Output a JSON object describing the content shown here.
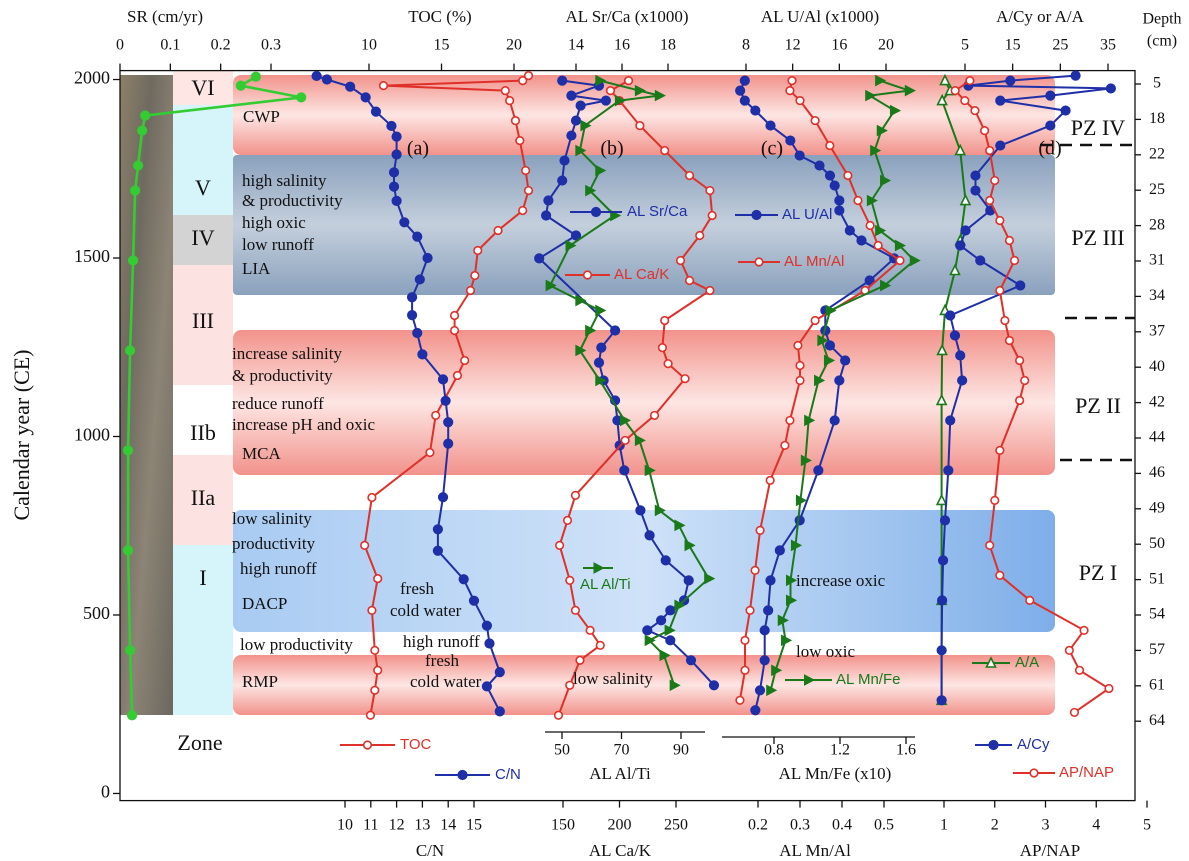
{
  "chart_data": {
    "type": "line",
    "y_label": "Calendar year (CE)",
    "ylim": [
      -20,
      2025
    ],
    "yticks": [
      0,
      500,
      1000,
      1500,
      2000
    ],
    "depth_label": [
      "Depth",
      "(cm)"
    ],
    "depth_ticks": [
      5,
      18,
      22,
      25,
      28,
      31,
      34,
      37,
      40,
      42,
      44,
      46,
      49,
      50,
      51,
      54,
      57,
      61,
      64
    ],
    "axes": [
      {
        "label": "SR (cm/yr)",
        "side": "top",
        "lim": [
          0,
          0.3
        ],
        "ticks": [
          0,
          0.1,
          0.2,
          0.3
        ]
      },
      {
        "label": "TOC (%)",
        "side": "top",
        "lim": [
          10,
          20
        ],
        "ticks": [
          10,
          15,
          20
        ]
      },
      {
        "label": "C/N",
        "side": "bottom",
        "lim": [
          10,
          15
        ],
        "ticks": [
          10,
          11,
          12,
          13,
          14,
          15
        ]
      },
      {
        "label": "AL Sr/Ca (x1000)",
        "side": "top",
        "lim": [
          14,
          18
        ],
        "ticks": [
          14,
          16,
          18
        ]
      },
      {
        "label": "AL Al/Ti",
        "side": "bottom-inner",
        "lim": [
          50,
          90
        ],
        "ticks": [
          50,
          70,
          90
        ]
      },
      {
        "label": "AL Ca/K",
        "side": "bottom",
        "lim": [
          150,
          250
        ],
        "ticks": [
          150,
          200,
          250
        ]
      },
      {
        "label": "AL U/Al (x1000)",
        "side": "top",
        "lim": [
          8,
          20
        ],
        "ticks": [
          8,
          12,
          16,
          20
        ]
      },
      {
        "label": "AL Mn/Fe (x10)",
        "side": "bottom-inner",
        "lim": [
          0.8,
          1.6
        ],
        "ticks": [
          0.8,
          1.2,
          1.6
        ]
      },
      {
        "label": "AL Mn/Al",
        "side": "bottom",
        "lim": [
          0.2,
          0.5
        ],
        "ticks": [
          0.2,
          0.3,
          0.4,
          0.5
        ]
      },
      {
        "label": "A/Cy or A/A",
        "side": "top",
        "lim": [
          5,
          35
        ],
        "ticks": [
          5,
          15,
          25,
          35
        ]
      },
      {
        "label": "AP/NAP",
        "side": "bottom",
        "lim": [
          1,
          5
        ],
        "ticks": [
          1,
          2,
          3,
          4,
          5
        ]
      }
    ],
    "series": [
      {
        "color": "#33cc33",
        "marker": "circle-filled",
        "axis": 0,
        "years": [
          2008,
          1983,
          1950,
          1899,
          1857,
          1759,
          1689,
          1493,
          1241,
          961,
          681,
          401,
          219
        ],
        "values": [
          0.27,
          0.24,
          0.36,
          0.05,
          0.044,
          0.036,
          0.03,
          0.026,
          0.02,
          0.016,
          0.016,
          0.02,
          0.024
        ]
      },
      {
        "name": "TOC",
        "color": "#e0302a",
        "marker": "circle-open",
        "axis": 1,
        "years": [
          2011,
          1997,
          1983,
          1969,
          1941,
          1885,
          1829,
          1745,
          1689,
          1633,
          1577,
          1521,
          1451,
          1409,
          1339,
          1297,
          1213,
          1171,
          1059,
          955,
          829,
          695,
          602,
          513,
          401,
          345,
          289,
          219
        ],
        "values": [
          21.0,
          20.6,
          11.0,
          19.4,
          19.7,
          20.1,
          20.4,
          20.8,
          21.0,
          20.6,
          18.9,
          17.5,
          17.3,
          17.0,
          15.9,
          15.9,
          16.6,
          16.1,
          14.6,
          14.2,
          10.2,
          9.7,
          10.6,
          10.2,
          10.4,
          10.6,
          10.4,
          10.1
        ]
      },
      {
        "name": "C/N",
        "color": "#1f2fa8",
        "marker": "circle-filled",
        "axis": 2,
        "years": [
          2010,
          2000,
          1980,
          1950,
          1910,
          1870,
          1840,
          1790,
          1740,
          1700,
          1660,
          1600,
          1560,
          1500,
          1440,
          1390,
          1340,
          1290,
          1230,
          1160,
          1100,
          1040,
          980,
          830,
          740,
          680,
          600,
          540,
          470,
          420,
          340,
          300,
          230
        ],
        "values": [
          8.9,
          9.3,
          10.2,
          10.8,
          11.2,
          11.8,
          12.0,
          12.0,
          11.9,
          11.9,
          12.0,
          12.3,
          12.8,
          13.2,
          12.9,
          12.6,
          12.6,
          12.8,
          13.0,
          13.8,
          13.9,
          14.0,
          14.0,
          13.8,
          13.6,
          13.6,
          14.6,
          15.0,
          15.5,
          15.6,
          16.0,
          15.5,
          16.0
        ]
      },
      {
        "name": "AL Sr/Ca",
        "color": "#1f2fa8",
        "marker": "circle-filled",
        "axis": 3,
        "years": [
          1997,
          1983,
          1955,
          1941,
          1927,
          1885,
          1843,
          1773,
          1717,
          1661,
          1619,
          1563,
          1499,
          1297,
          1249,
          1207,
          1157,
          1101,
          1045,
          975,
          905,
          793,
          723,
          653,
          597,
          541,
          513,
          485,
          457,
          429,
          373,
          303
        ],
        "values": [
          13.4,
          15.0,
          13.8,
          15.3,
          14.2,
          14.0,
          13.8,
          13.5,
          13.4,
          12.8,
          12.7,
          14.0,
          12.4,
          15.7,
          15.1,
          15.0,
          15.2,
          15.7,
          15.8,
          15.9,
          16.1,
          16.8,
          17.2,
          17.9,
          18.9,
          18.7,
          18.1,
          17.7,
          17.1,
          18.1,
          19.0,
          20.0
        ]
      },
      {
        "name": "AL Ca/K",
        "color": "#e0302a",
        "marker": "circle-open",
        "axis": 5,
        "years": [
          1997,
          1969,
          1941,
          1871,
          1801,
          1731,
          1689,
          1619,
          1563,
          1493,
          1437,
          1409,
          1325,
          1249,
          1204,
          1162,
          1059,
          989,
          835,
          765,
          695,
          597,
          513,
          457,
          415,
          373,
          303,
          219
        ],
        "values": [
          208,
          192,
          200,
          218,
          240,
          262,
          280,
          282,
          271,
          254,
          262,
          280,
          240,
          238,
          243,
          258,
          231,
          205,
          161,
          154,
          147,
          156,
          161,
          174,
          183,
          165,
          156,
          146
        ]
      },
      {
        "name": "AL Al/Ti",
        "color": "#1a7a1a",
        "marker": "triangle-filled",
        "axis": 4,
        "years": [
          1997,
          1969,
          1955,
          1941,
          1871,
          1801,
          1745,
          1689,
          1619,
          1535,
          1423,
          1381,
          1353,
          1297,
          1241,
          1157,
          1045,
          989,
          905,
          793,
          751,
          695,
          602,
          527,
          457,
          429,
          387,
          303
        ],
        "values": [
          62.7,
          76.0,
          82.7,
          69.3,
          57.7,
          56.0,
          62.7,
          59.3,
          67.7,
          52.7,
          46.0,
          56.0,
          62.7,
          59.3,
          56.0,
          62.7,
          71.0,
          76.0,
          79.3,
          82.7,
          89.3,
          92.7,
          99.3,
          89.3,
          86.0,
          79.3,
          84.3,
          87.7
        ]
      },
      {
        "name": "AL U/Al",
        "color": "#1f2fa8",
        "marker": "circle-filled",
        "axis": 6,
        "years": [
          1997,
          1969,
          1941,
          1913,
          1871,
          1829,
          1787,
          1759,
          1731,
          1703,
          1661,
          1633,
          1577,
          1549,
          1499,
          1437,
          1353,
          1297,
          1255,
          1213,
          1157,
          1045,
          905,
          765,
          681,
          597,
          513,
          457,
          373,
          289,
          233
        ],
        "values": [
          7.9,
          7.5,
          7.9,
          8.8,
          10.1,
          11.8,
          12.6,
          14.3,
          15.2,
          15.6,
          16.0,
          16.0,
          16.9,
          17.9,
          20.7,
          18.6,
          14.8,
          14.8,
          15.2,
          16.5,
          16.0,
          15.6,
          14.2,
          12.6,
          10.9,
          10.1,
          9.9,
          9.6,
          9.6,
          9.2,
          8.8
        ]
      },
      {
        "name": "AL Mn/Al",
        "color": "#e0302a",
        "marker": "circle-open",
        "axis": 8,
        "years": [
          1997,
          1969,
          1941,
          1885,
          1815,
          1731,
          1661,
          1591,
          1535,
          1493,
          1409,
          1325,
          1255,
          1199,
          1157,
          1045,
          975,
          877,
          737,
          625,
          513,
          429,
          345,
          261
        ],
        "values": [
          0.281,
          0.276,
          0.3,
          0.336,
          0.371,
          0.414,
          0.438,
          0.467,
          0.486,
          0.538,
          0.455,
          0.336,
          0.295,
          0.3,
          0.3,
          0.276,
          0.264,
          0.229,
          0.205,
          0.193,
          0.181,
          0.169,
          0.169,
          0.157
        ]
      },
      {
        "name": "AL Mn/Fe",
        "color": "#1a7a1a",
        "marker": "triangle-filled",
        "axis": 7,
        "years": [
          1997,
          1969,
          1955,
          1913,
          1857,
          1801,
          1717,
          1661,
          1577,
          1535,
          1493,
          1423,
          1353,
          1269,
          1213,
          1157,
          1045,
          933,
          821,
          695,
          597,
          541,
          485,
          429,
          345,
          289
        ],
        "values": [
          1.44,
          1.62,
          1.38,
          1.53,
          1.45,
          1.41,
          1.47,
          1.39,
          1.44,
          1.56,
          1.65,
          1.47,
          1.14,
          1.09,
          1.13,
          1.07,
          1.01,
          0.99,
          0.96,
          0.93,
          0.9,
          0.9,
          0.85,
          0.87,
          0.81,
          0.78
        ]
      },
      {
        "name": "A/A",
        "color": "#1a7a1a",
        "marker": "triangle-open",
        "axis": 9,
        "years": [
          1997,
          1969,
          1941,
          1801,
          1661,
          1549,
          1465,
          1353,
          1241,
          1101,
          821,
          541,
          261
        ],
        "values": [
          0.8,
          1.9,
          0.2,
          4.0,
          5.1,
          4.0,
          2.9,
          0.8,
          0.2,
          0.1,
          0.1,
          0.1,
          0.1
        ]
      },
      {
        "name": "A/Cy",
        "color": "#1f2fa8",
        "marker": "circle-filled",
        "axis": 9,
        "years": [
          2011,
          1997,
          1983,
          1975,
          1955,
          1941,
          1913,
          1871,
          1815,
          1731,
          1689,
          1633,
          1577,
          1535,
          1493,
          1423,
          1339,
          1283,
          1227,
          1157,
          1045,
          905,
          765,
          653,
          541,
          401,
          261
        ],
        "values": [
          28.2,
          14.5,
          5.7,
          35.6,
          22.9,
          12.4,
          26.1,
          22.9,
          12.4,
          7.2,
          7.2,
          10.3,
          5.1,
          4.0,
          8.2,
          16.6,
          1.9,
          2.9,
          4.0,
          4.4,
          1.9,
          1.5,
          0.8,
          0.4,
          0.2,
          0.1,
          0.1
        ]
      },
      {
        "name": "AP/NAP",
        "color": "#e0302a",
        "marker": "circle-open",
        "axis": 10,
        "years": [
          1997,
          1969,
          1941,
          1913,
          1857,
          1801,
          1717,
          1661,
          1605,
          1549,
          1493,
          1409,
          1325,
          1269,
          1213,
          1157,
          1101,
          961,
          821,
          695,
          611,
          541,
          457,
          401,
          345,
          294,
          227
        ],
        "values": [
          1.51,
          1.22,
          1.41,
          1.61,
          1.8,
          1.9,
          2.0,
          1.9,
          2.1,
          2.29,
          2.39,
          2.1,
          2.2,
          2.29,
          2.49,
          2.59,
          2.49,
          2.1,
          2.0,
          1.9,
          2.1,
          2.69,
          3.76,
          3.47,
          3.67,
          4.25,
          3.57
        ]
      }
    ],
    "zones": [
      "VI",
      "V",
      "IV",
      "III",
      "IIb",
      "IIa",
      "I",
      "Zone"
    ],
    "pollen_zones": [
      "PZ IV",
      "PZ III",
      "PZ II",
      "PZ I"
    ],
    "panel_letters": [
      "(a)",
      "(b)",
      "(c)",
      "(d)"
    ],
    "annotations": [
      "CWP",
      "high salinity",
      "& productivity",
      "high oxic",
      "low runoff",
      "LIA",
      "increase salinity",
      "& productivity",
      "reduce runoff",
      "increase pH and oxic",
      "MCA",
      "low salinity",
      "productivity",
      "high runoff",
      "DACP",
      "fresh",
      "cold water",
      "low productivity",
      "RMP",
      "high runoff",
      "fresh",
      "cold water",
      "low salinity",
      "increase oxic",
      "low oxic"
    ]
  }
}
